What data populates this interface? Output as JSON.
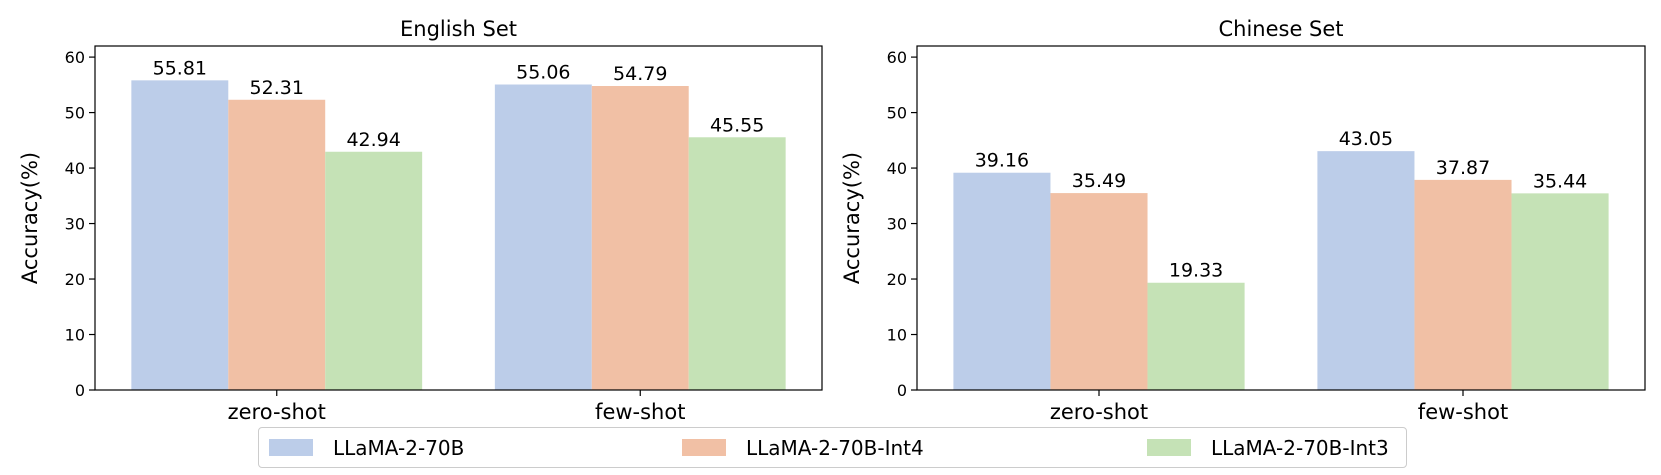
{
  "chart_data": [
    {
      "type": "bar",
      "title": "English Set",
      "xlabel": "",
      "ylabel": "Accuracy(%)",
      "ylim": [
        0,
        62
      ],
      "yticks": [
        0,
        10,
        20,
        30,
        40,
        50,
        60
      ],
      "categories": [
        "zero-shot",
        "few-shot"
      ],
      "series": [
        {
          "name": "LLaMA-2-70B",
          "values": [
            55.81,
            55.06
          ]
        },
        {
          "name": "LLaMA-2-70B-Int4",
          "values": [
            52.31,
            54.79
          ]
        },
        {
          "name": "LLaMA-2-70B-Int3",
          "values": [
            42.94,
            45.55
          ]
        }
      ],
      "grid": false
    },
    {
      "type": "bar",
      "title": "Chinese Set",
      "xlabel": "",
      "ylabel": "Accuracy(%)",
      "ylim": [
        0,
        62
      ],
      "yticks": [
        0,
        10,
        20,
        30,
        40,
        50,
        60
      ],
      "categories": [
        "zero-shot",
        "few-shot"
      ],
      "series": [
        {
          "name": "LLaMA-2-70B",
          "values": [
            39.16,
            43.05
          ]
        },
        {
          "name": "LLaMA-2-70B-Int4",
          "values": [
            35.49,
            37.87
          ]
        },
        {
          "name": "LLaMA-2-70B-Int3",
          "values": [
            19.33,
            35.44
          ]
        }
      ],
      "grid": false
    }
  ],
  "legend": {
    "position": "bottom-center",
    "items": [
      {
        "label": "LLaMA-2-70B",
        "color": "#bccde9"
      },
      {
        "label": "LLaMA-2-70B-Int4",
        "color": "#f1c0a5"
      },
      {
        "label": "LLaMA-2-70B-Int3",
        "color": "#c5e2b6"
      }
    ]
  }
}
